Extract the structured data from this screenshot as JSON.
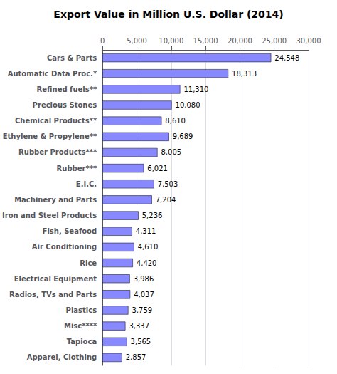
{
  "chart_data": {
    "type": "bar",
    "orientation": "horizontal",
    "title": "Export Value in Million U.S. Dollar (2014)",
    "categories": [
      "Apparel, Clothing",
      "Tapioca",
      "Misc****",
      "Plastics",
      "Radios, TVs and Parts",
      "Electrical Equipment",
      "Rice",
      "Air Conditioning",
      "Fish, Seafood",
      "Iron and Steel Products",
      "Machinery and Parts",
      "E.I.C.",
      "Rubber***",
      "Rubber Products***",
      "Ethylene & Propylene**",
      "Chemical Products**",
      "Precious Stones",
      "Refined fuels**",
      "Automatic Data Proc.*",
      "Cars & Parts"
    ],
    "values": [
      2857,
      3565,
      3337,
      3759,
      4037,
      3986,
      4420,
      4610,
      4311,
      5236,
      7204,
      7503,
      6021,
      8005,
      9689,
      8610,
      10080,
      11310,
      18313,
      24548
    ],
    "value_labels": [
      "2,857",
      "3,565",
      "3,337",
      "3,759",
      "4,037",
      "3,986",
      "4,420",
      "4,610",
      "4,311",
      "5,236",
      "7,204",
      "7,503",
      "6,021",
      "8,005",
      "9,689",
      "8,610",
      "10,080",
      "11,310",
      "18,313",
      "24,548"
    ],
    "data_labels": true,
    "color": "#8888ff",
    "xlim": [
      0,
      30000
    ],
    "xticks": [
      0,
      {
        "value": 5000,
        "label": "5,000"
      },
      {
        "value": 10000,
        "label": "10,000"
      },
      {
        "value": 15000,
        "label": "15,000"
      },
      {
        "value": 20000,
        "label": "20,000"
      },
      {
        "value": 25000,
        "label": "25,000"
      },
      {
        "value": 30000,
        "label": "30,000"
      }
    ],
    "grid": true
  }
}
